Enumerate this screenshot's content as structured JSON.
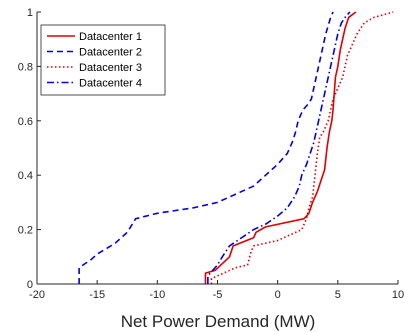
{
  "chart_data": {
    "type": "line",
    "title": "",
    "xlabel": "Net Power Demand (MW)",
    "ylabel": "",
    "xlim": [
      -20,
      10
    ],
    "ylim": [
      0,
      1
    ],
    "xticks": [
      -20,
      -15,
      -10,
      -5,
      0,
      5,
      10
    ],
    "yticks": [
      0,
      0.2,
      0.4,
      0.6,
      0.8,
      1
    ],
    "x_tick_labels": [
      "-20",
      "-15",
      "-10",
      "-5",
      "0",
      "5",
      "10"
    ],
    "y_tick_labels": [
      "0",
      "0.2",
      "0.4",
      "0.6",
      "0.8",
      "1"
    ],
    "grid": false,
    "legend_position": "top-left",
    "series": [
      {
        "name": "Datacenter 1",
        "color": "#e00000",
        "dash": "solid",
        "points": [
          [
            -6.0,
            0.0
          ],
          [
            -6.0,
            0.04
          ],
          [
            -5.2,
            0.05
          ],
          [
            -4.0,
            0.1
          ],
          [
            -3.7,
            0.14
          ],
          [
            -2.0,
            0.17
          ],
          [
            -1.8,
            0.19
          ],
          [
            -1.0,
            0.21
          ],
          [
            2.2,
            0.24
          ],
          [
            2.6,
            0.26
          ],
          [
            2.9,
            0.3
          ],
          [
            3.3,
            0.34
          ],
          [
            3.6,
            0.38
          ],
          [
            3.9,
            0.42
          ],
          [
            4.1,
            0.5
          ],
          [
            4.3,
            0.56
          ],
          [
            4.5,
            0.6
          ],
          [
            4.6,
            0.64
          ],
          [
            4.7,
            0.7
          ],
          [
            4.8,
            0.76
          ],
          [
            5.0,
            0.8
          ],
          [
            5.2,
            0.86
          ],
          [
            5.4,
            0.9
          ],
          [
            5.6,
            0.94
          ],
          [
            5.9,
            0.98
          ],
          [
            6.5,
            1.0
          ]
        ]
      },
      {
        "name": "Datacenter 2",
        "color": "#0000dd",
        "dash": "dashed",
        "points": [
          [
            -16.5,
            0.0
          ],
          [
            -16.5,
            0.06
          ],
          [
            -15.5,
            0.09
          ],
          [
            -15.0,
            0.11
          ],
          [
            -13.5,
            0.15
          ],
          [
            -12.5,
            0.19
          ],
          [
            -11.8,
            0.24
          ],
          [
            -10.0,
            0.26
          ],
          [
            -7.0,
            0.28
          ],
          [
            -5.0,
            0.3
          ],
          [
            -3.5,
            0.33
          ],
          [
            -2.0,
            0.36
          ],
          [
            -1.0,
            0.4
          ],
          [
            0.0,
            0.44
          ],
          [
            0.8,
            0.48
          ],
          [
            1.2,
            0.52
          ],
          [
            1.5,
            0.56
          ],
          [
            1.7,
            0.6
          ],
          [
            2.1,
            0.64
          ],
          [
            2.5,
            0.66
          ],
          [
            2.8,
            0.68
          ],
          [
            3.0,
            0.72
          ],
          [
            3.2,
            0.76
          ],
          [
            3.4,
            0.8
          ],
          [
            3.6,
            0.84
          ],
          [
            3.8,
            0.88
          ],
          [
            4.0,
            0.92
          ],
          [
            4.2,
            0.95
          ],
          [
            4.4,
            0.98
          ],
          [
            4.6,
            1.0
          ]
        ]
      },
      {
        "name": "Datacenter 3",
        "color": "#e00000",
        "dash": "dotted",
        "points": [
          [
            -5.5,
            0.0
          ],
          [
            -5.5,
            0.02
          ],
          [
            -4.5,
            0.04
          ],
          [
            -3.5,
            0.06
          ],
          [
            -2.5,
            0.07
          ],
          [
            -2.2,
            0.12
          ],
          [
            -2.0,
            0.14
          ],
          [
            0.0,
            0.16
          ],
          [
            2.0,
            0.2
          ],
          [
            2.4,
            0.24
          ],
          [
            2.6,
            0.28
          ],
          [
            2.9,
            0.32
          ],
          [
            3.1,
            0.4
          ],
          [
            3.3,
            0.48
          ],
          [
            3.5,
            0.54
          ],
          [
            3.8,
            0.56
          ],
          [
            4.2,
            0.6
          ],
          [
            4.6,
            0.68
          ],
          [
            5.0,
            0.72
          ],
          [
            5.4,
            0.76
          ],
          [
            5.6,
            0.8
          ],
          [
            5.8,
            0.84
          ],
          [
            6.2,
            0.88
          ],
          [
            6.6,
            0.92
          ],
          [
            7.2,
            0.96
          ],
          [
            8.0,
            0.98
          ],
          [
            9.6,
            1.0
          ]
        ]
      },
      {
        "name": "Datacenter 4",
        "color": "#0000dd",
        "dash": "dashdot",
        "points": [
          [
            -5.8,
            0.0
          ],
          [
            -5.8,
            0.03
          ],
          [
            -5.0,
            0.07
          ],
          [
            -4.6,
            0.1
          ],
          [
            -4.0,
            0.14
          ],
          [
            -3.0,
            0.17
          ],
          [
            -2.0,
            0.2
          ],
          [
            -1.0,
            0.22
          ],
          [
            0.0,
            0.25
          ],
          [
            0.8,
            0.28
          ],
          [
            1.4,
            0.32
          ],
          [
            1.8,
            0.36
          ],
          [
            2.0,
            0.4
          ],
          [
            2.4,
            0.44
          ],
          [
            2.7,
            0.48
          ],
          [
            3.0,
            0.52
          ],
          [
            3.2,
            0.56
          ],
          [
            3.4,
            0.6
          ],
          [
            3.6,
            0.64
          ],
          [
            3.8,
            0.68
          ],
          [
            4.0,
            0.72
          ],
          [
            4.2,
            0.76
          ],
          [
            4.4,
            0.8
          ],
          [
            4.6,
            0.84
          ],
          [
            4.8,
            0.88
          ],
          [
            5.0,
            0.92
          ],
          [
            5.3,
            0.96
          ],
          [
            5.6,
            0.98
          ],
          [
            6.0,
            1.0
          ]
        ]
      }
    ]
  }
}
